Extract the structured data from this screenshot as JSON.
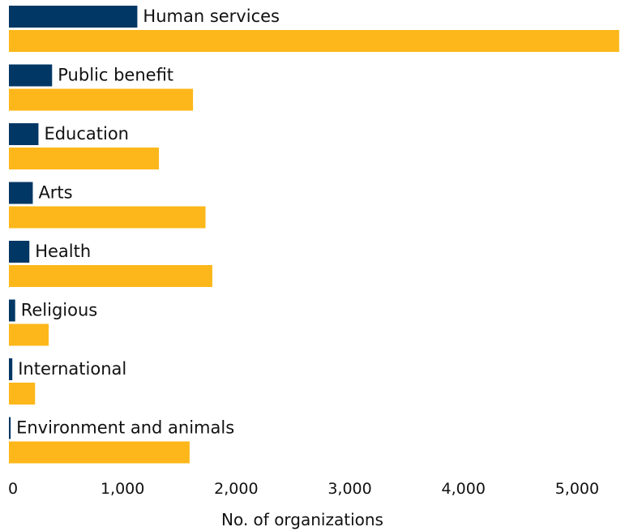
{
  "chart_data": {
    "type": "bar",
    "orientation": "horizontal",
    "categories": [
      "Human services",
      "Public benefit",
      "Education",
      "Arts",
      "Health",
      "Religious",
      "International",
      "Environment and animals"
    ],
    "series": [
      {
        "values": [
          1130,
          380,
          260,
          210,
          180,
          55,
          30,
          15
        ],
        "color": "#003764"
      },
      {
        "values": [
          5370,
          1620,
          1320,
          1730,
          1790,
          350,
          230,
          1590
        ],
        "color": "#FDB71A"
      }
    ],
    "xlabel": "No. of organizations",
    "ylabel": "",
    "xlim": [
      0,
      5400
    ],
    "xticks": [
      0,
      1000,
      2000,
      3000,
      4000,
      5000
    ],
    "xtick_labels": [
      "0",
      "1,000",
      "2,000",
      "3,000",
      "4,000",
      "5,000"
    ],
    "grid": false,
    "legend": "none"
  }
}
